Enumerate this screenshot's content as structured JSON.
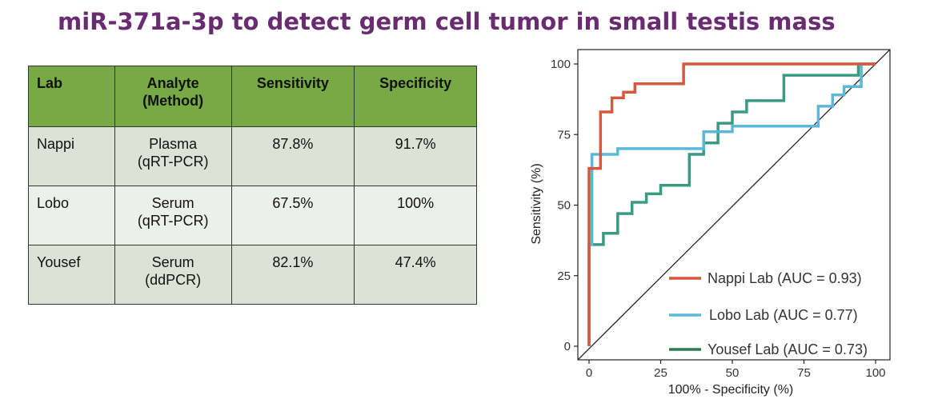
{
  "title": "miR-371a-3p to detect germ cell tumor in small testis mass",
  "table": {
    "headers": [
      {
        "line1": "Lab",
        "line2": ""
      },
      {
        "line1": "Analyte",
        "line2": "(Method)"
      },
      {
        "line1": "Sensitivity",
        "line2": ""
      },
      {
        "line1": "Specificity",
        "line2": ""
      }
    ],
    "rows": [
      {
        "lab": "Nappi",
        "analyte": "Plasma",
        "method": "(qRT-PCR)",
        "sensitivity": "87.8%",
        "specificity": "91.7%"
      },
      {
        "lab": "Lobo",
        "analyte": "Serum",
        "method": "(qRT-PCR)",
        "sensitivity": "67.5%",
        "specificity": "100%"
      },
      {
        "lab": "Yousef",
        "analyte": "Serum",
        "method": "(ddPCR)",
        "sensitivity": "82.1%",
        "specificity": "47.4%"
      }
    ]
  },
  "chart_data": {
    "type": "line",
    "title": "",
    "xlabel": "100% - Specificity (%)",
    "ylabel": "Sensitivity (%)",
    "xlim": [
      0,
      100
    ],
    "ylim": [
      0,
      100
    ],
    "x_ticks": [
      "0",
      "25",
      "50",
      "75",
      "100"
    ],
    "y_ticks": [
      "0",
      "25",
      "50",
      "75",
      "100"
    ],
    "grid": false,
    "legend_position": "bottom-right",
    "diagonal_reference": true,
    "series": [
      {
        "name": "Nappi Lab (AUC = 0.93)",
        "color": "#d9573d",
        "points": [
          [
            0,
            0
          ],
          [
            0,
            63
          ],
          [
            4,
            63
          ],
          [
            4,
            83
          ],
          [
            8,
            83
          ],
          [
            8,
            88
          ],
          [
            12,
            88
          ],
          [
            12,
            90
          ],
          [
            16,
            90
          ],
          [
            16,
            93
          ],
          [
            33,
            93
          ],
          [
            33,
            100
          ],
          [
            100,
            100
          ]
        ]
      },
      {
        "name": "Lobo Lab (AUC = 0.77)",
        "color": "#5cb8d9",
        "points": [
          [
            0,
            0
          ],
          [
            0,
            36
          ],
          [
            1,
            36
          ],
          [
            1,
            68
          ],
          [
            10,
            68
          ],
          [
            10,
            70
          ],
          [
            40,
            70
          ],
          [
            40,
            76
          ],
          [
            50,
            76
          ],
          [
            50,
            78
          ],
          [
            80,
            78
          ],
          [
            80,
            85
          ],
          [
            85,
            85
          ],
          [
            85,
            89
          ],
          [
            89,
            89
          ],
          [
            89,
            92
          ],
          [
            95,
            92
          ],
          [
            95,
            100
          ],
          [
            100,
            100
          ]
        ]
      },
      {
        "name": "Yousef Lab (AUC = 0.73)",
        "color": "#3a9b80",
        "points": [
          [
            0,
            0
          ],
          [
            0,
            36
          ],
          [
            5,
            36
          ],
          [
            5,
            40
          ],
          [
            10,
            40
          ],
          [
            10,
            47
          ],
          [
            15,
            47
          ],
          [
            15,
            51
          ],
          [
            20,
            51
          ],
          [
            20,
            54
          ],
          [
            25,
            54
          ],
          [
            25,
            57
          ],
          [
            35,
            57
          ],
          [
            35,
            68
          ],
          [
            40,
            68
          ],
          [
            40,
            72
          ],
          [
            45,
            72
          ],
          [
            45,
            79
          ],
          [
            50,
            79
          ],
          [
            50,
            83
          ],
          [
            55,
            83
          ],
          [
            55,
            87
          ],
          [
            68,
            87
          ],
          [
            68,
            96
          ],
          [
            94,
            96
          ],
          [
            94,
            100
          ],
          [
            100,
            100
          ]
        ]
      }
    ],
    "legend_line_colors": [
      "#d9573d",
      "#5cb8d9",
      "#2e7d4f"
    ]
  }
}
